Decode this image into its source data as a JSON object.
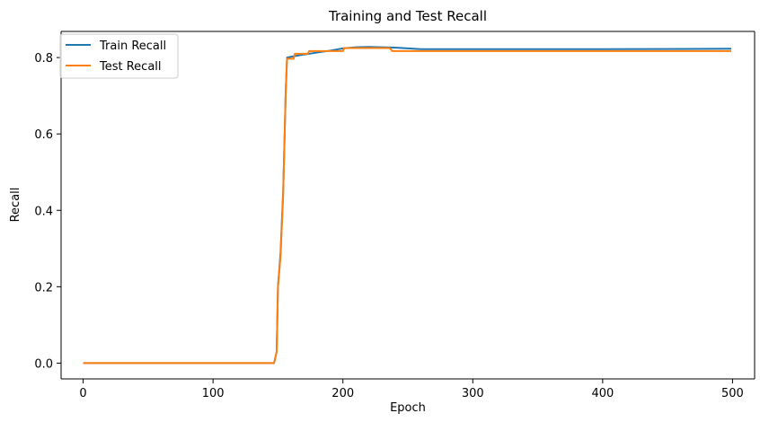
{
  "chart_data": {
    "type": "line",
    "title": "Training and Test Recall",
    "xlabel": "Epoch",
    "ylabel": "Recall",
    "xlim": [
      -17,
      517
    ],
    "ylim": [
      -0.0413,
      0.8684
    ],
    "xticks": [
      0,
      100,
      200,
      300,
      400,
      500
    ],
    "yticks": [
      0.0,
      0.2,
      0.4,
      0.6,
      0.8
    ],
    "xtick_labels": [
      "0",
      "100",
      "200",
      "300",
      "400",
      "500"
    ],
    "ytick_labels": [
      "0.0",
      "0.2",
      "0.4",
      "0.6",
      "0.8"
    ],
    "grid": false,
    "legend": "upper-left",
    "series": [
      {
        "name": "Train Recall",
        "color": "#1f77b4",
        "points": [
          [
            0,
            0
          ],
          [
            147,
            0
          ],
          [
            149,
            0.03
          ],
          [
            150,
            0.2
          ],
          [
            152,
            0.29
          ],
          [
            154,
            0.45
          ],
          [
            156,
            0.71
          ],
          [
            157,
            0.8
          ],
          [
            160,
            0.802
          ],
          [
            170,
            0.808
          ],
          [
            180,
            0.813
          ],
          [
            190,
            0.818
          ],
          [
            200,
            0.824
          ],
          [
            210,
            0.827
          ],
          [
            220,
            0.828
          ],
          [
            230,
            0.827
          ],
          [
            240,
            0.826
          ],
          [
            250,
            0.824
          ],
          [
            260,
            0.822
          ],
          [
            300,
            0.822
          ],
          [
            400,
            0.822
          ],
          [
            499,
            0.823
          ]
        ]
      },
      {
        "name": "Test Recall",
        "color": "#ff7f0e",
        "points": [
          [
            0,
            0
          ],
          [
            147,
            0
          ],
          [
            149,
            0.03
          ],
          [
            150,
            0.2
          ],
          [
            152,
            0.28
          ],
          [
            154,
            0.44
          ],
          [
            156,
            0.72
          ],
          [
            157,
            0.797
          ],
          [
            162,
            0.797
          ],
          [
            163,
            0.81
          ],
          [
            173,
            0.81
          ],
          [
            174,
            0.817
          ],
          [
            200,
            0.817
          ],
          [
            201,
            0.825
          ],
          [
            236,
            0.825
          ],
          [
            238,
            0.817
          ],
          [
            300,
            0.817
          ],
          [
            400,
            0.817
          ],
          [
            499,
            0.817
          ]
        ]
      }
    ]
  }
}
